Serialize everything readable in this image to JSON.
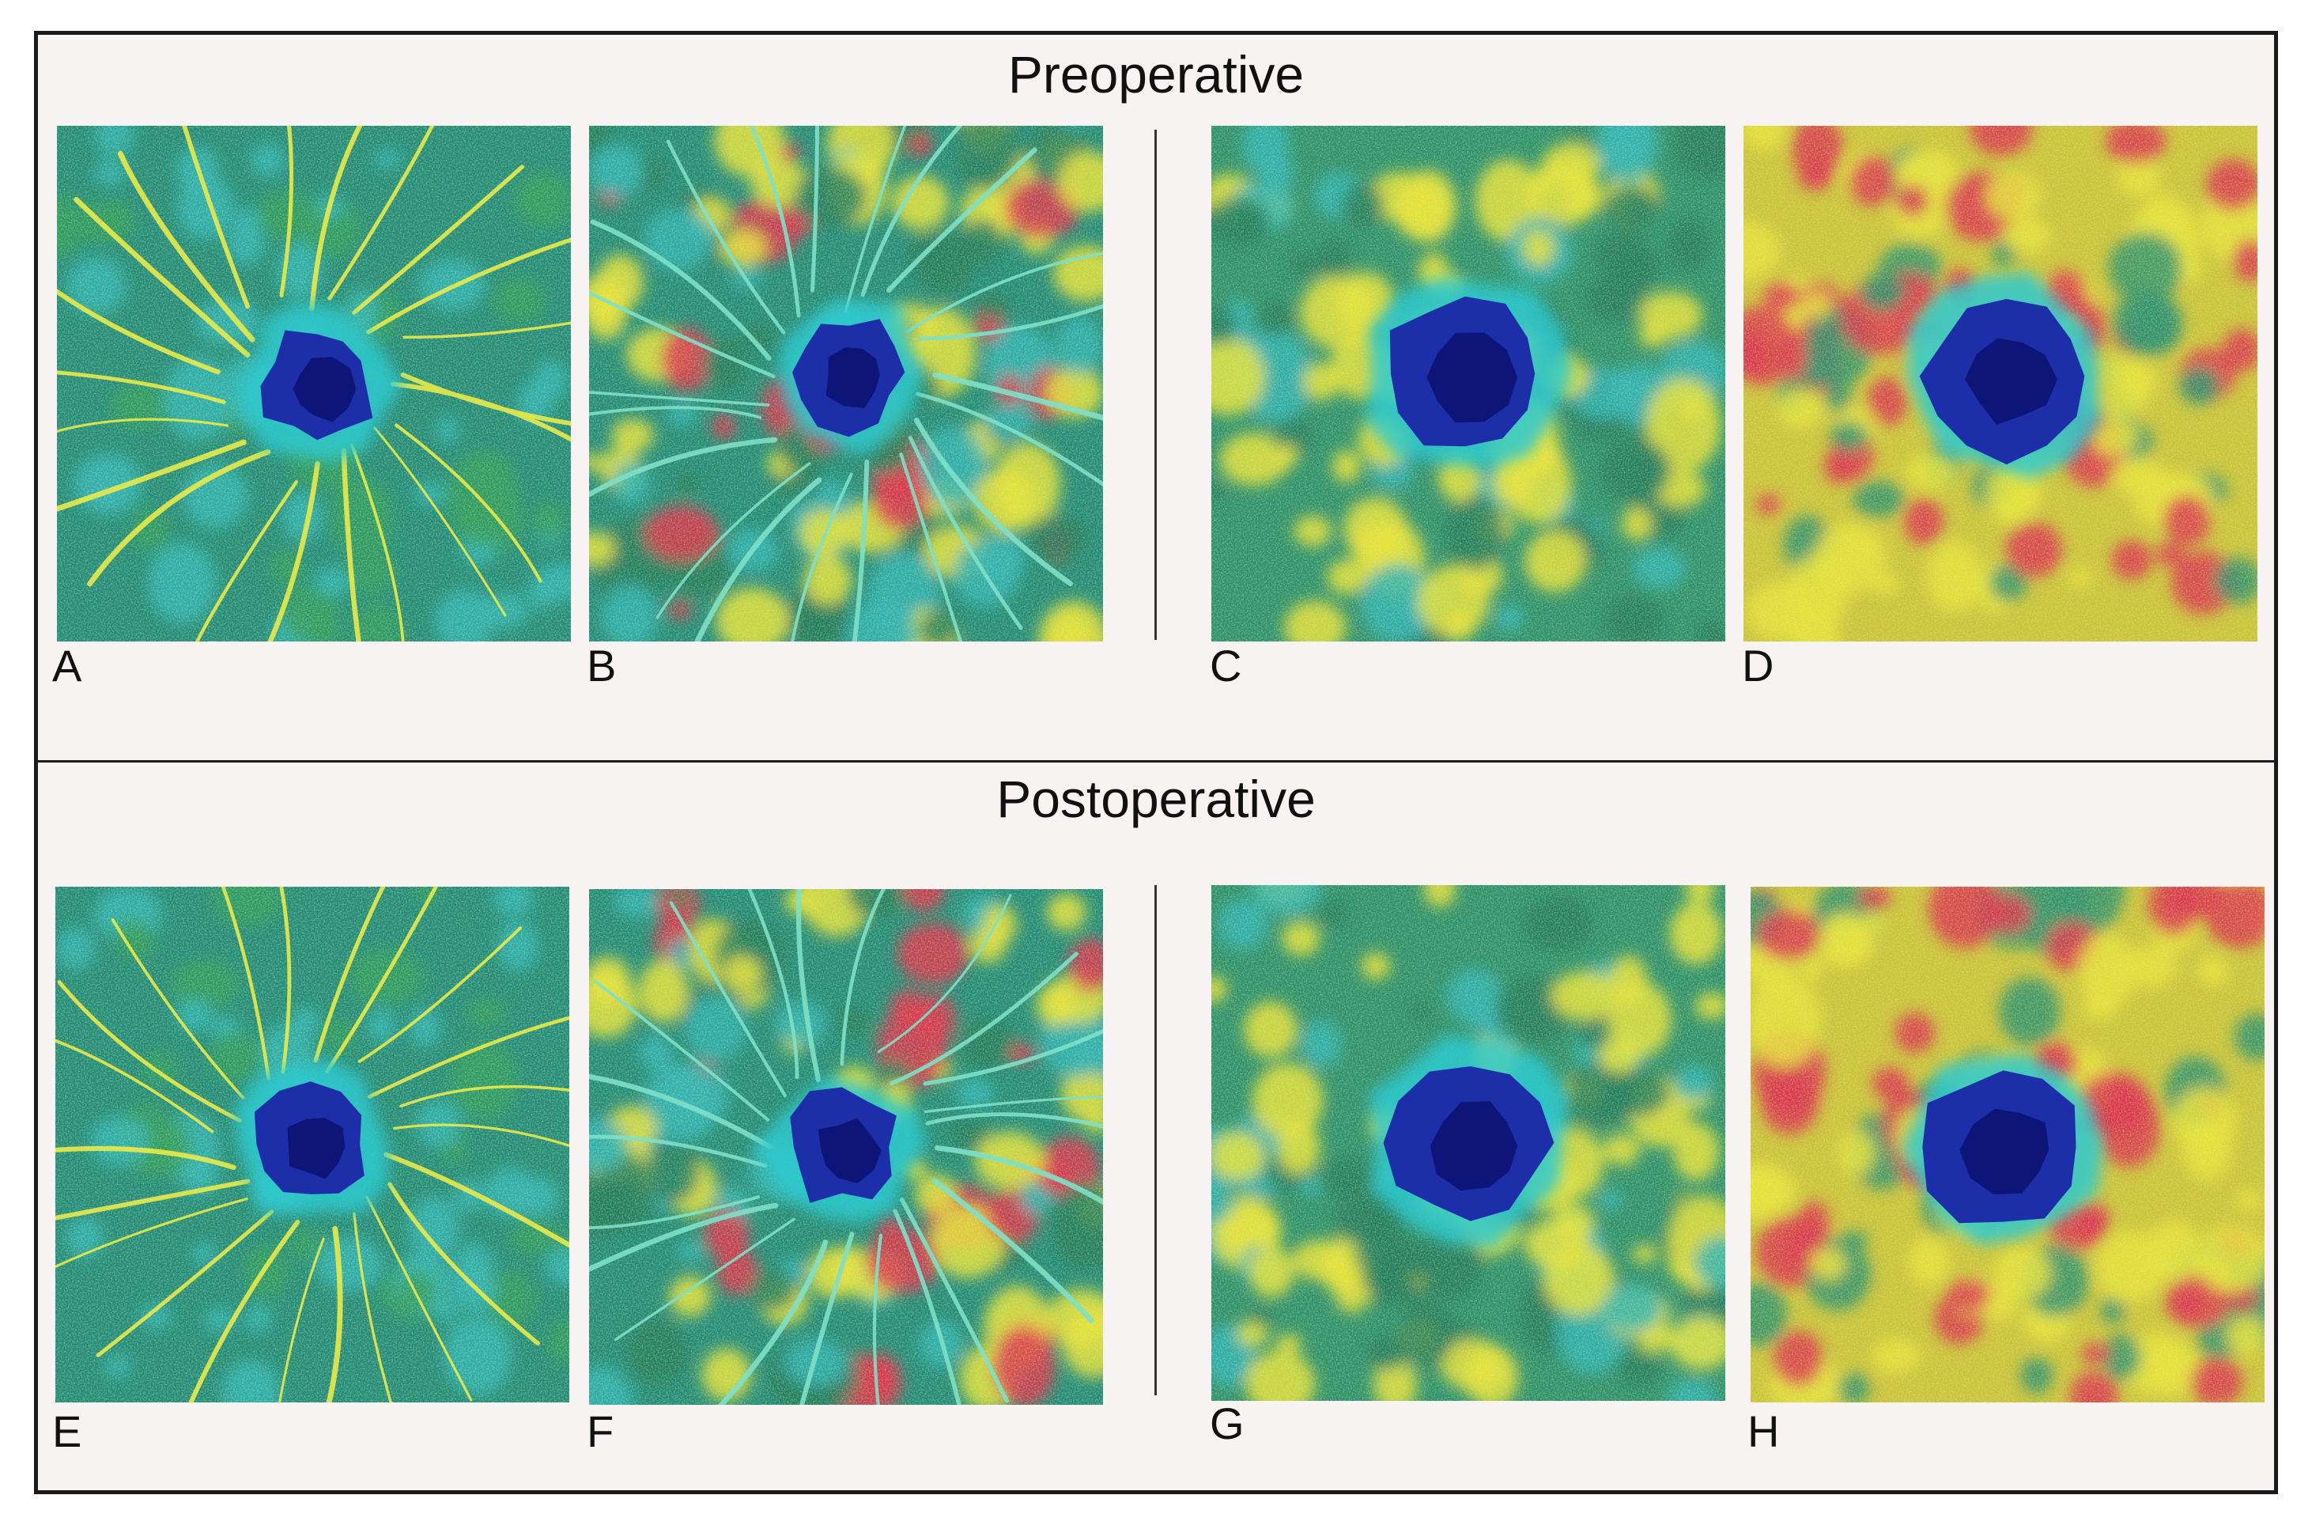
{
  "sections": [
    {
      "title": "Preoperative"
    },
    {
      "title": "Postoperative"
    }
  ],
  "panels": [
    {
      "label": "A"
    },
    {
      "label": "B"
    },
    {
      "label": "C"
    },
    {
      "label": "D"
    },
    {
      "label": "E"
    },
    {
      "label": "F"
    },
    {
      "label": "G"
    },
    {
      "label": "H"
    }
  ],
  "colors": {
    "frame": "#1a1a1a",
    "background": "#f6f3f2",
    "fovea_dark": "#0a1070",
    "fovea_mid": "#1d2fa8",
    "ring_cyan": "#2fc9cf",
    "map_green": "#1f8a7a",
    "map_yellow": "#e4e03a",
    "map_red": "#d8324f"
  }
}
